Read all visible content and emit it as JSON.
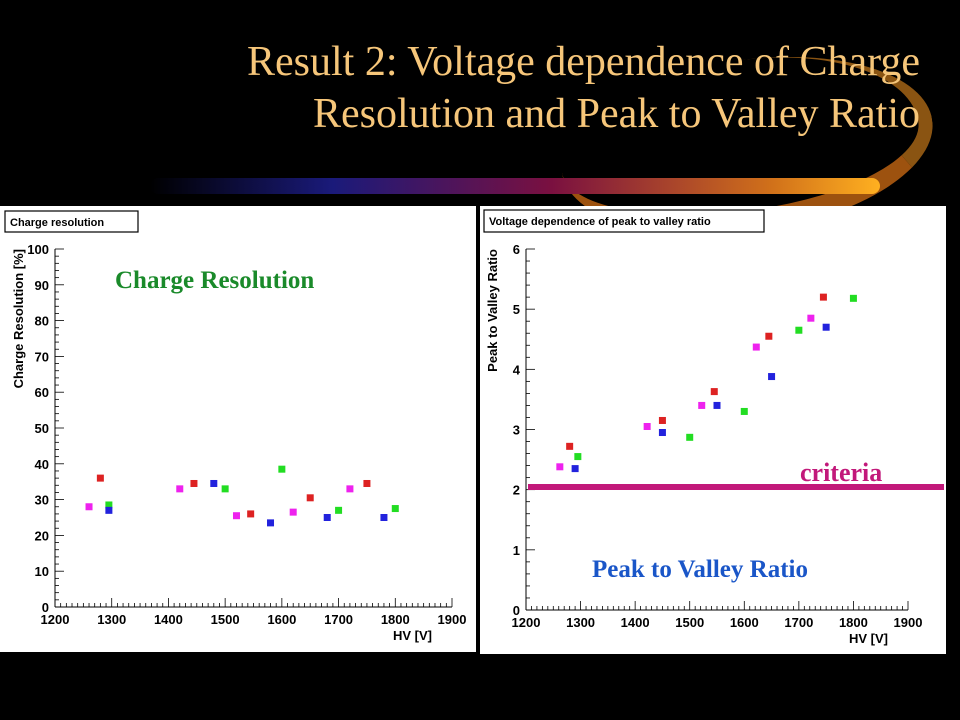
{
  "slide": {
    "title_line1": "Result 2: Voltage dependence of Charge",
    "title_line2": "Resolution and Peak to Valley Ratio",
    "criteria_label": "criteria",
    "criteria_color": "#c2187a"
  },
  "chart_data": [
    {
      "type": "scatter",
      "title": "Charge resolution",
      "annotation": "Charge Resolution",
      "xlabel": "HV [V]",
      "ylabel": "Charge Resolution [%]",
      "xlim": [
        1200,
        1900
      ],
      "ylim": [
        0,
        100
      ],
      "xticks": [
        1200,
        1300,
        1400,
        1500,
        1600,
        1700,
        1800,
        1900
      ],
      "yticks": [
        0,
        10,
        20,
        30,
        40,
        50,
        60,
        70,
        80,
        90,
        100
      ],
      "series": [
        {
          "color": "#dd2222",
          "points": [
            [
              1280,
              36
            ],
            [
              1445,
              34.5
            ],
            [
              1545,
              26
            ],
            [
              1650,
              30.5
            ],
            [
              1750,
              34.5
            ]
          ]
        },
        {
          "color": "#22dd22",
          "points": [
            [
              1295,
              28.5
            ],
            [
              1500,
              33
            ],
            [
              1600,
              38.5
            ],
            [
              1700,
              27
            ],
            [
              1800,
              27.5
            ]
          ]
        },
        {
          "color": "#2222dd",
          "points": [
            [
              1295,
              27
            ],
            [
              1480,
              34.5
            ],
            [
              1580,
              23.5
            ],
            [
              1680,
              25
            ],
            [
              1780,
              25
            ]
          ]
        },
        {
          "color": "#ee22ee",
          "points": [
            [
              1260,
              28
            ],
            [
              1420,
              33
            ],
            [
              1520,
              25.5
            ],
            [
              1620,
              26.5
            ],
            [
              1720,
              33
            ]
          ]
        }
      ]
    },
    {
      "type": "scatter",
      "title": "Voltage dependence of peak to valley ratio",
      "annotation": "Peak to Valley Ratio",
      "xlabel": "HV [V]",
      "ylabel": "Peak to Valley Ratio",
      "xlim": [
        1200,
        1900
      ],
      "ylim": [
        0,
        6
      ],
      "xticks": [
        1200,
        1300,
        1400,
        1500,
        1600,
        1700,
        1800,
        1900
      ],
      "yticks": [
        0,
        1,
        2,
        3,
        4,
        5,
        6
      ],
      "criteria": 2,
      "series": [
        {
          "color": "#dd2222",
          "points": [
            [
              1280,
              2.72
            ],
            [
              1450,
              3.15
            ],
            [
              1545,
              3.63
            ],
            [
              1645,
              4.55
            ],
            [
              1745,
              5.2
            ]
          ]
        },
        {
          "color": "#22dd22",
          "points": [
            [
              1295,
              2.55
            ],
            [
              1500,
              2.87
            ],
            [
              1600,
              3.3
            ],
            [
              1700,
              4.65
            ],
            [
              1800,
              5.18
            ]
          ]
        },
        {
          "color": "#2222dd",
          "points": [
            [
              1290,
              2.35
            ],
            [
              1450,
              2.95
            ],
            [
              1550,
              3.4
            ],
            [
              1650,
              3.88
            ],
            [
              1750,
              4.7
            ]
          ]
        },
        {
          "color": "#ee22ee",
          "points": [
            [
              1262,
              2.38
            ],
            [
              1422,
              3.05
            ],
            [
              1522,
              3.4
            ],
            [
              1622,
              4.37
            ],
            [
              1722,
              4.85
            ]
          ]
        }
      ]
    }
  ]
}
